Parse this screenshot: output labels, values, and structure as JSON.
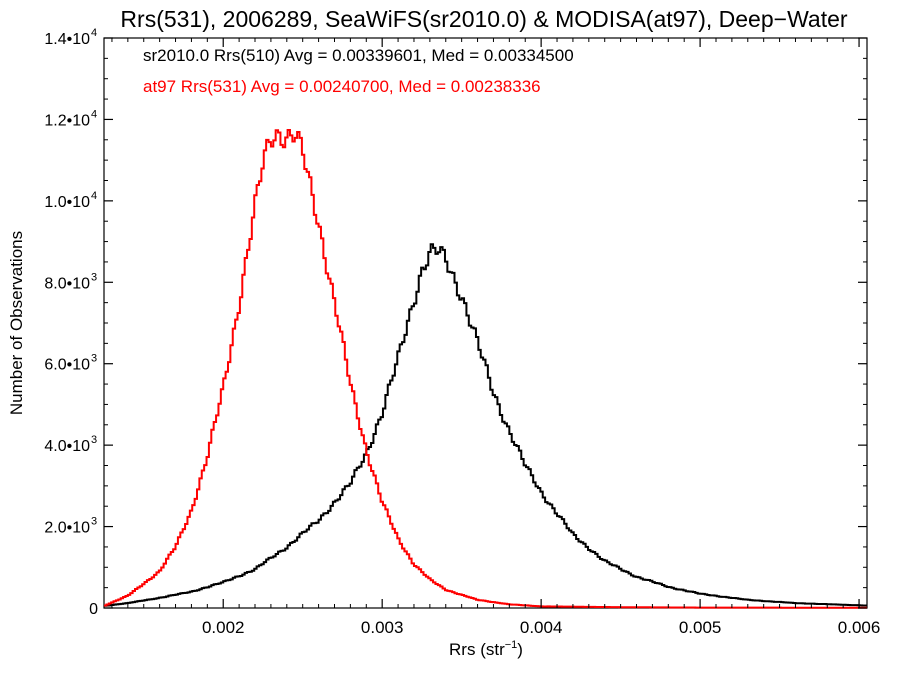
{
  "chart_data": {
    "type": "line",
    "title": "Rrs(531), 2006289, SeaWiFS(sr2010.0) & MODISA(at97), Deep−Water",
    "xlabel": "Rrs (str",
    "xlabel_sup": "−1",
    "xlabel_close": ")",
    "ylabel": "Number of Observations",
    "xlim": [
      0.00125,
      0.00605
    ],
    "ylim": [
      0,
      14000
    ],
    "grid": false,
    "x_ticks": [
      {
        "value": 0.002,
        "label": "0.002"
      },
      {
        "value": 0.003,
        "label": "0.003"
      },
      {
        "value": 0.004,
        "label": "0.004"
      },
      {
        "value": 0.005,
        "label": "0.005"
      },
      {
        "value": 0.006,
        "label": "0.006"
      }
    ],
    "y_ticks": [
      {
        "value": 0,
        "mant": "0",
        "exp": ""
      },
      {
        "value": 2000,
        "mant": "2.0•10",
        "exp": "3"
      },
      {
        "value": 4000,
        "mant": "4.0•10",
        "exp": "3"
      },
      {
        "value": 6000,
        "mant": "6.0•10",
        "exp": "3"
      },
      {
        "value": 8000,
        "mant": "8.0•10",
        "exp": "3"
      },
      {
        "value": 10000,
        "mant": "1.0•10",
        "exp": "4"
      },
      {
        "value": 12000,
        "mant": "1.2•10",
        "exp": "4"
      },
      {
        "value": 14000,
        "mant": "1.4•10",
        "exp": "4"
      }
    ],
    "series": [
      {
        "name": "sr2010.0 Rrs(510)",
        "annotation": "sr2010.0 Rrs(510) Avg = 0.00339601, Med = 0.00334500",
        "color": "#000000",
        "points": [
          [
            0.00125,
            50
          ],
          [
            0.0014,
            120
          ],
          [
            0.0016,
            250
          ],
          [
            0.0018,
            400
          ],
          [
            0.002,
            630
          ],
          [
            0.0022,
            950
          ],
          [
            0.0024,
            1500
          ],
          [
            0.0026,
            2150
          ],
          [
            0.0028,
            3050
          ],
          [
            0.0029,
            3800
          ],
          [
            0.003,
            4800
          ],
          [
            0.0031,
            6100
          ],
          [
            0.0032,
            7600
          ],
          [
            0.00325,
            8300
          ],
          [
            0.0033,
            8700
          ],
          [
            0.00335,
            8750
          ],
          [
            0.0034,
            8550
          ],
          [
            0.0035,
            7700
          ],
          [
            0.0036,
            6500
          ],
          [
            0.0037,
            5300
          ],
          [
            0.0038,
            4350
          ],
          [
            0.0039,
            3500
          ],
          [
            0.004,
            2850
          ],
          [
            0.0042,
            1800
          ],
          [
            0.0044,
            1150
          ],
          [
            0.0046,
            770
          ],
          [
            0.0048,
            520
          ],
          [
            0.005,
            350
          ],
          [
            0.0053,
            200
          ],
          [
            0.0056,
            120
          ],
          [
            0.00605,
            60
          ]
        ]
      },
      {
        "name": "at97 Rrs(531)",
        "annotation": "at97 Rrs(531) Avg = 0.00240700, Med = 0.00238336",
        "color": "#ff0000",
        "points": [
          [
            0.00125,
            50
          ],
          [
            0.0014,
            300
          ],
          [
            0.0016,
            900
          ],
          [
            0.0017,
            1500
          ],
          [
            0.0018,
            2400
          ],
          [
            0.0019,
            3700
          ],
          [
            0.002,
            5400
          ],
          [
            0.0021,
            7500
          ],
          [
            0.0022,
            9800
          ],
          [
            0.00225,
            10900
          ],
          [
            0.0023,
            11600
          ],
          [
            0.00235,
            11700
          ],
          [
            0.0024,
            11550
          ],
          [
            0.00245,
            11600
          ],
          [
            0.0025,
            11150
          ],
          [
            0.0026,
            9500
          ],
          [
            0.0027,
            7500
          ],
          [
            0.0028,
            5500
          ],
          [
            0.0029,
            3900
          ],
          [
            0.003,
            2600
          ],
          [
            0.0031,
            1700
          ],
          [
            0.0032,
            1080
          ],
          [
            0.0033,
            700
          ],
          [
            0.0034,
            450
          ],
          [
            0.0036,
            200
          ],
          [
            0.0038,
            90
          ],
          [
            0.004,
            40
          ],
          [
            0.0045,
            20
          ],
          [
            0.005,
            10
          ],
          [
            0.00605,
            5
          ]
        ]
      }
    ]
  }
}
